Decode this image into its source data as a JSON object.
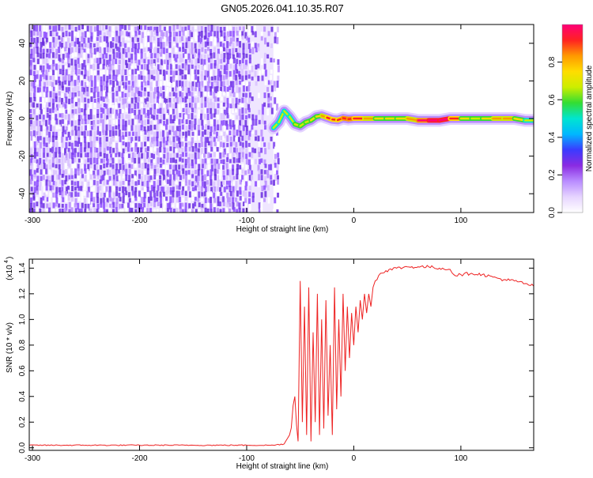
{
  "figure_title": "GN05.2026.041.10.35.R07",
  "colors": {
    "spectrogram_noise": "#7a3cf0",
    "snr_line": "#ee2222",
    "colorbar": [
      "#ffffff",
      "#e6d4ff",
      "#b98cff",
      "#8a2be2",
      "#3b3bff",
      "#00b7ff",
      "#00e5d0",
      "#33dd33",
      "#ccee00",
      "#ffdd00",
      "#ff9900",
      "#ff2222",
      "#ff0077"
    ]
  },
  "chart_data": [
    {
      "type": "heatmap",
      "xlabel": "Height of straight line (km)",
      "ylabel": "Frequency (Hz)",
      "xlim": [
        -303,
        168
      ],
      "ylim": [
        -50,
        50
      ],
      "x_ticks": [
        "-300",
        "-200",
        "-100",
        "0",
        "100"
      ],
      "y_ticks": [
        "-40",
        "-20",
        "0",
        "20",
        "40"
      ],
      "colorbar": {
        "label": "Normalized spectral amplitude",
        "range": [
          0,
          1
        ],
        "ticks": [
          "0.0",
          "0.2",
          "0.4",
          "0.6",
          "0.8"
        ]
      },
      "noise_region_x": [
        -303,
        -75
      ],
      "signal_track": [
        {
          "x": -75,
          "freq": -5,
          "amp": 0.45
        },
        {
          "x": -70,
          "freq": -2,
          "amp": 0.5
        },
        {
          "x": -65,
          "freq": 4,
          "amp": 0.45
        },
        {
          "x": -60,
          "freq": 1,
          "amp": 0.5
        },
        {
          "x": -55,
          "freq": -3,
          "amp": 0.55
        },
        {
          "x": -50,
          "freq": -4,
          "amp": 0.55
        },
        {
          "x": -45,
          "freq": -2,
          "amp": 0.55
        },
        {
          "x": -40,
          "freq": -1,
          "amp": 0.55
        },
        {
          "x": -35,
          "freq": 1,
          "amp": 0.6
        },
        {
          "x": -30,
          "freq": 1.5,
          "amp": 0.6
        },
        {
          "x": -25,
          "freq": 0.5,
          "amp": 0.7
        },
        {
          "x": -20,
          "freq": -0.5,
          "amp": 0.75
        },
        {
          "x": -15,
          "freq": -0.8,
          "amp": 0.7
        },
        {
          "x": -10,
          "freq": 0.2,
          "amp": 0.85
        },
        {
          "x": -5,
          "freq": -0.3,
          "amp": 0.75
        },
        {
          "x": 0,
          "freq": 0,
          "amp": 0.85
        },
        {
          "x": 10,
          "freq": 0,
          "amp": 0.7
        },
        {
          "x": 20,
          "freq": 0,
          "amp": 0.6
        },
        {
          "x": 30,
          "freq": 0,
          "amp": 0.6
        },
        {
          "x": 40,
          "freq": 0,
          "amp": 0.6
        },
        {
          "x": 50,
          "freq": 0,
          "amp": 0.6
        },
        {
          "x": 60,
          "freq": -1,
          "amp": 0.7
        },
        {
          "x": 70,
          "freq": -1,
          "amp": 0.95
        },
        {
          "x": 80,
          "freq": -1,
          "amp": 0.9
        },
        {
          "x": 90,
          "freq": 0,
          "amp": 0.95
        },
        {
          "x": 100,
          "freq": 0,
          "amp": 0.6
        },
        {
          "x": 110,
          "freq": 0,
          "amp": 0.55
        },
        {
          "x": 120,
          "freq": 0,
          "amp": 0.55
        },
        {
          "x": 130,
          "freq": 0,
          "amp": 0.6
        },
        {
          "x": 140,
          "freq": 0,
          "amp": 0.8
        },
        {
          "x": 150,
          "freq": 0,
          "amp": 0.6
        },
        {
          "x": 160,
          "freq": -1,
          "amp": 0.55
        },
        {
          "x": 168,
          "freq": -1,
          "amp": 0.5
        }
      ]
    },
    {
      "type": "line",
      "xlabel": "Height of straight line (km)",
      "ylabel": "SNR (10 * v/v)",
      "y_scale_label": "(x10",
      "y_scale_exponent": "4",
      "xlim": [
        -303,
        168
      ],
      "ylim": [
        -0.02,
        1.47
      ],
      "x_ticks": [
        "-300",
        "-200",
        "-100",
        "0",
        "100"
      ],
      "y_ticks": [
        "0.0",
        "0.2",
        "0.4",
        "0.6",
        "0.8",
        "1.0",
        "1.2",
        "1.4"
      ],
      "series": [
        {
          "points": [
            [
              -303,
              0.02
            ],
            [
              -250,
              0.02
            ],
            [
              -200,
              0.02
            ],
            [
              -150,
              0.02
            ],
            [
              -100,
              0.02
            ],
            [
              -75,
              0.02
            ],
            [
              -65,
              0.03
            ],
            [
              -60,
              0.1
            ],
            [
              -55,
              0.4
            ],
            [
              -52,
              0.05
            ],
            [
              -50,
              1.3
            ],
            [
              -48,
              0.2
            ],
            [
              -46,
              1.1
            ],
            [
              -44,
              0.1
            ],
            [
              -42,
              1.25
            ],
            [
              -40,
              0.05
            ],
            [
              -38,
              0.9
            ],
            [
              -36,
              0.2
            ],
            [
              -34,
              1.2
            ],
            [
              -32,
              0.1
            ],
            [
              -30,
              1.0
            ],
            [
              -28,
              0.15
            ],
            [
              -26,
              1.15
            ],
            [
              -24,
              0.25
            ],
            [
              -22,
              0.8
            ],
            [
              -20,
              0.1
            ],
            [
              -18,
              1.25
            ],
            [
              -16,
              0.3
            ],
            [
              -14,
              1.0
            ],
            [
              -12,
              0.4
            ],
            [
              -10,
              1.2
            ],
            [
              -8,
              0.6
            ],
            [
              -6,
              1.1
            ],
            [
              -4,
              0.7
            ],
            [
              -2,
              1.05
            ],
            [
              0,
              0.8
            ],
            [
              2,
              1.1
            ],
            [
              4,
              0.9
            ],
            [
              6,
              1.15
            ],
            [
              8,
              1.0
            ],
            [
              10,
              1.2
            ],
            [
              12,
              1.05
            ],
            [
              14,
              1.2
            ],
            [
              16,
              1.1
            ],
            [
              18,
              1.25
            ],
            [
              20,
              1.3
            ],
            [
              25,
              1.36
            ],
            [
              30,
              1.38
            ],
            [
              40,
              1.4
            ],
            [
              50,
              1.41
            ],
            [
              60,
              1.41
            ],
            [
              70,
              1.41
            ],
            [
              80,
              1.4
            ],
            [
              90,
              1.39
            ],
            [
              95,
              1.34
            ],
            [
              100,
              1.35
            ],
            [
              110,
              1.36
            ],
            [
              120,
              1.35
            ],
            [
              130,
              1.33
            ],
            [
              140,
              1.31
            ],
            [
              150,
              1.3
            ],
            [
              160,
              1.28
            ],
            [
              168,
              1.26
            ]
          ]
        }
      ]
    }
  ]
}
